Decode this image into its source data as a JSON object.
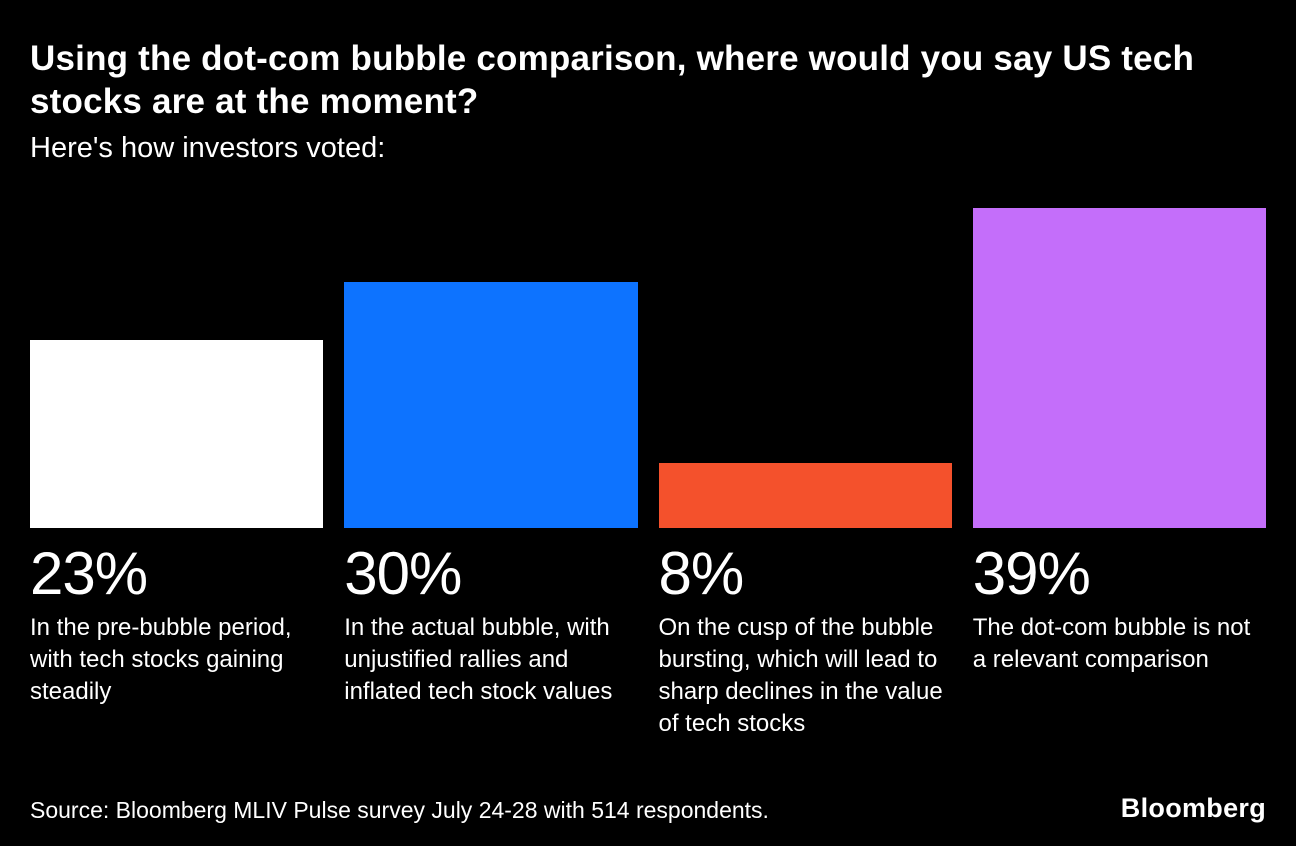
{
  "header": {
    "title": "Using the dot-com bubble comparison, where would you say US tech stocks are at the moment?",
    "subtitle": "Here's how investors voted:"
  },
  "chart_data": {
    "type": "bar",
    "title": "Using the dot-com bubble comparison, where would you say US tech stocks are at the moment?",
    "subtitle": "Here's how investors voted:",
    "categories": [
      "In the pre-bubble period, with tech stocks gaining steadily",
      "In the actual bubble, with unjustified rallies and inflated tech stock values",
      "On the cusp of the bubble bursting, which will lead to sharp declines in the value of tech stocks",
      "The dot-com bubble is not a relevant comparison"
    ],
    "values": [
      23,
      30,
      8,
      39
    ],
    "display_values": [
      "23%",
      "30%",
      "8%",
      "39%"
    ],
    "unit": "%",
    "colors": [
      "#ffffff",
      "#0d73ff",
      "#f4512c",
      "#c46efa"
    ],
    "ylim": [
      0,
      39
    ],
    "grid": false,
    "legend": "none",
    "background": "#000000"
  },
  "footer": {
    "source": "Source: Bloomberg MLIV Pulse survey July 24-28 with 514 respondents.",
    "logo": "Bloomberg"
  }
}
